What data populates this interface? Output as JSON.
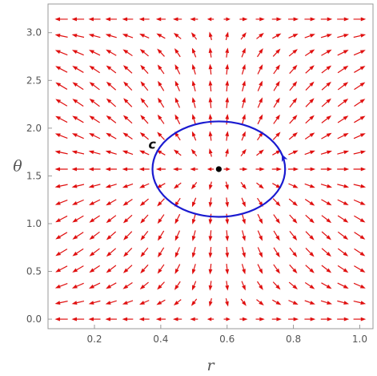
{
  "chart_data": {
    "type": "vector-field",
    "title": "",
    "xlabel": "r",
    "ylabel": "θ",
    "xlim": [
      0.06,
      1.04
    ],
    "ylim": [
      -0.1,
      3.3
    ],
    "x_ticks": [
      "0.2",
      "0.4",
      "0.6",
      "0.8",
      "1.0"
    ],
    "y_ticks": [
      "0.0",
      "0.5",
      "1.0",
      "1.5",
      "2.0",
      "2.5",
      "3.0"
    ],
    "grid": false,
    "frame": true,
    "field": {
      "description_formula": "u = (r - 0.575), v = -sin(2θ)",
      "r_start": 0.1,
      "r_step": 0.05,
      "r_count": 19,
      "theta_start": 0.0,
      "theta_step": 0.1745,
      "theta_count": 19,
      "r_center": 0.575,
      "color": "#e01010"
    },
    "equilibrium_point": {
      "r": 0.575,
      "theta": 1.5708,
      "color": "#000000"
    },
    "curve": {
      "label": "c",
      "center": {
        "r": 0.575,
        "theta": 1.5708
      },
      "radius_r": 0.2,
      "radius_theta": 0.5,
      "direction": "counterclockwise",
      "color": "#1a1ad0",
      "label_position": {
        "r": 0.37,
        "theta": 1.8
      }
    }
  }
}
